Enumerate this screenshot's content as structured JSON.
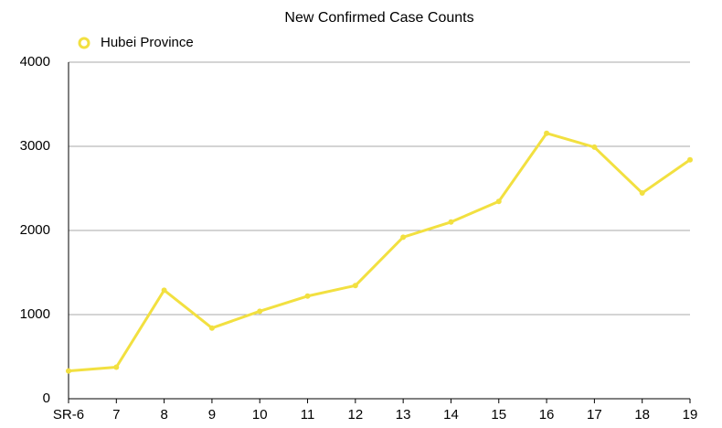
{
  "chart_data": {
    "type": "line",
    "title": "New Confirmed Case Counts",
    "categories": [
      "SR-6",
      "7",
      "8",
      "9",
      "10",
      "11",
      "12",
      "13",
      "14",
      "15",
      "16",
      "17",
      "18",
      "19"
    ],
    "series": [
      {
        "name": "Hubei Province",
        "color": "#f2e040",
        "values": [
          330,
          375,
          1290,
          840,
          1040,
          1220,
          1345,
          1920,
          2100,
          2345,
          3155,
          2990,
          2445,
          2840
        ]
      }
    ],
    "ylim": [
      0,
      4000
    ],
    "yticks": [
      0,
      1000,
      2000,
      3000,
      4000
    ],
    "grid": true,
    "legend": "top-left"
  }
}
